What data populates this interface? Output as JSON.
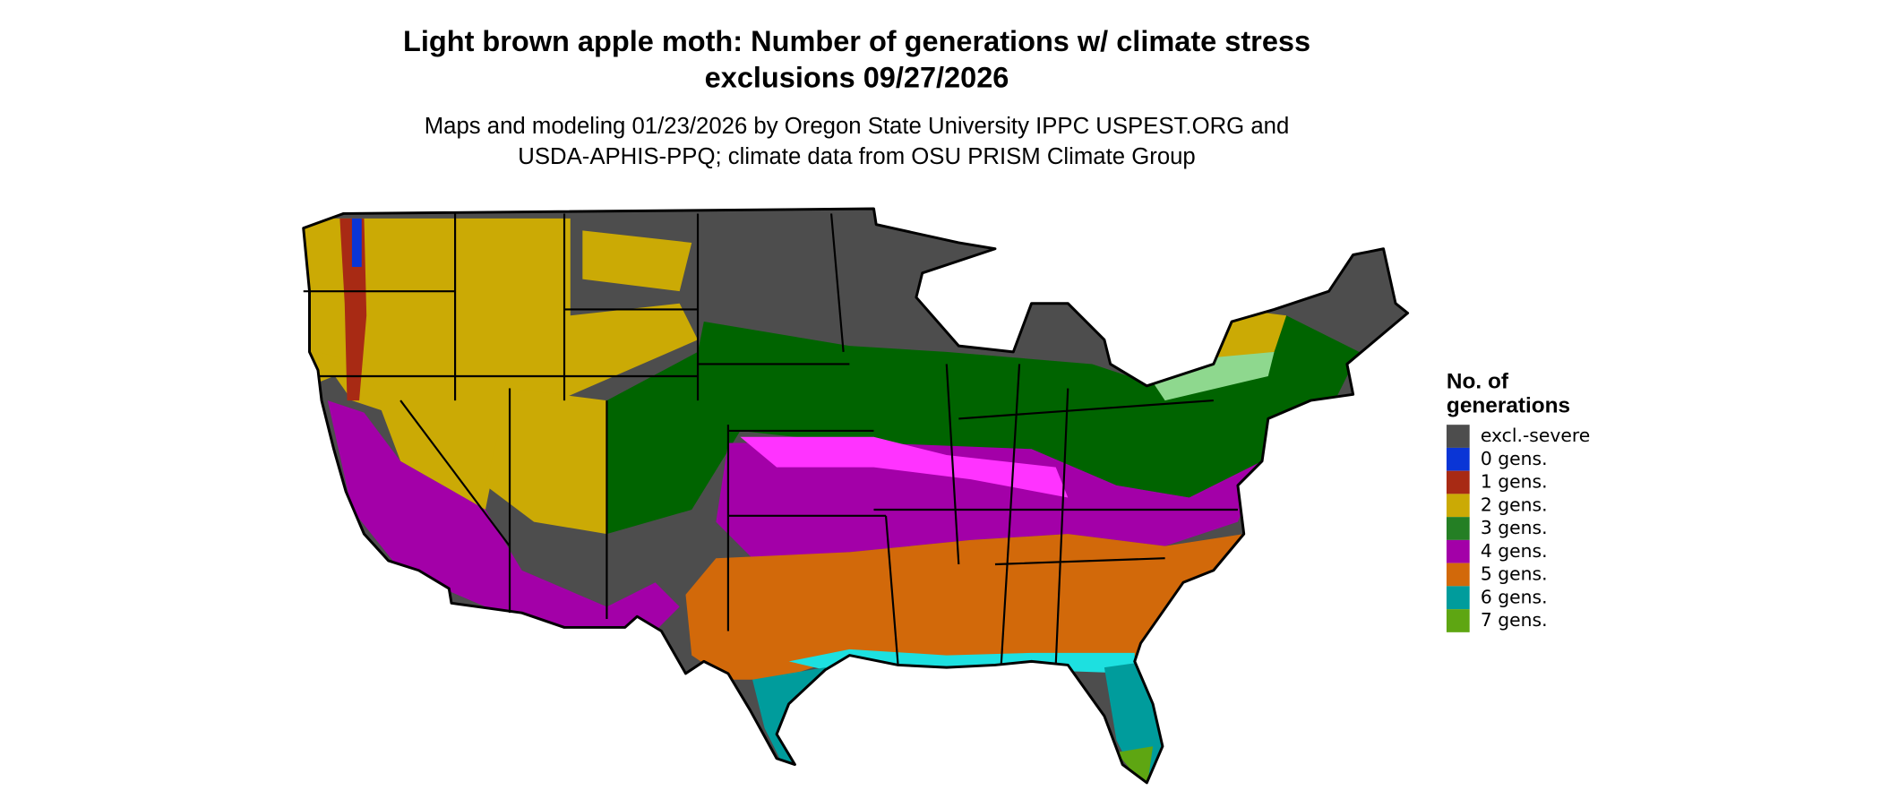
{
  "header": {
    "title": [
      "Light brown apple moth: Number of generations w/ climate stress",
      "exclusions 09/27/2026"
    ],
    "subtitle": [
      "Maps and modeling 01/23/2026 by Oregon State University IPPC USPEST.ORG and",
      "USDA-APHIS-PPQ; climate data from OSU PRISM Climate Group"
    ]
  },
  "legend": {
    "title": [
      "No. of",
      "generations"
    ],
    "items": [
      {
        "label": "excl.-severe",
        "color": "#4d4d4d"
      },
      {
        "label": "0 gens.",
        "color": "#0a35d6"
      },
      {
        "label": "1 gens.",
        "color": "#a82a14"
      },
      {
        "label": "2 gens.",
        "color": "#cbaa05"
      },
      {
        "label": "3 gens.",
        "color": "#247f24"
      },
      {
        "label": "4 gens.",
        "color": "#a300a8"
      },
      {
        "label": "5 gens.",
        "color": "#d2690a"
      },
      {
        "label": "6 gens.",
        "color": "#009c9c"
      },
      {
        "label": "7 gens.",
        "color": "#5ea612"
      }
    ]
  }
}
